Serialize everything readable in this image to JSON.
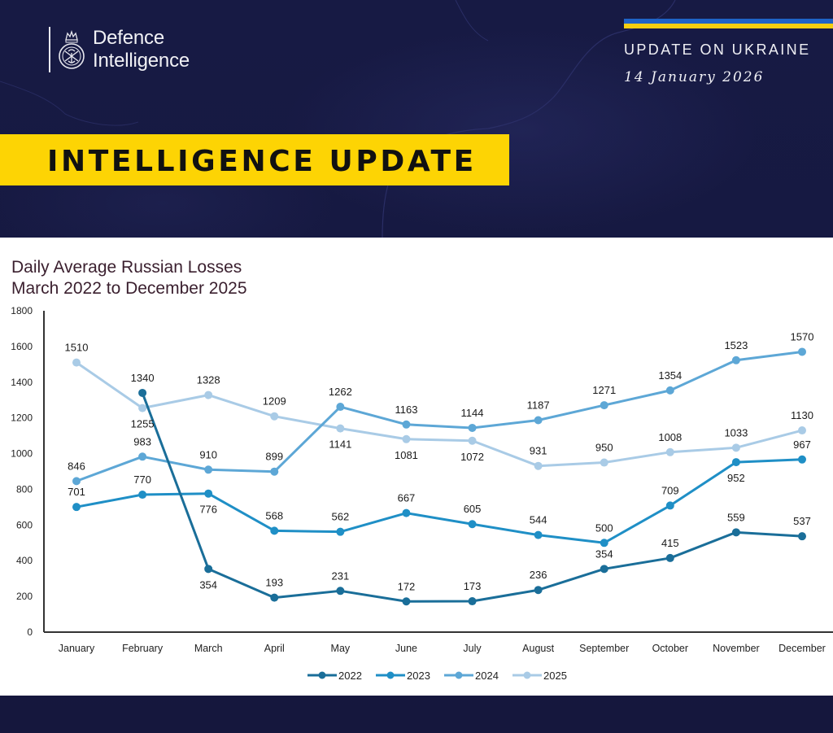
{
  "header": {
    "org_line1": "Defence",
    "org_line2": "Intelligence",
    "update_title": "UPDATE ON UKRAINE",
    "update_date": "14 January 2026",
    "banner": "INTELLIGENCE UPDATE",
    "flag_colors": [
      "#1f63c6",
      "#f5cf10"
    ],
    "logo_icon": "royal-crest-icon"
  },
  "colors": {
    "background": "#16183f",
    "banner": "#fdd404",
    "panel": "#ffffff"
  },
  "chart_data": {
    "type": "line",
    "title": "Daily Average Russian Losses",
    "subtitle": "March 2022 to December 2025",
    "xlabel": "",
    "ylabel": "",
    "ylim": [
      0,
      1800
    ],
    "yticks": [
      0,
      200,
      400,
      600,
      800,
      1000,
      1200,
      1400,
      1600,
      1800
    ],
    "grid": false,
    "legend_position": "bottom-center",
    "categories": [
      "January",
      "February",
      "March",
      "April",
      "May",
      "June",
      "July",
      "August",
      "September",
      "October",
      "November",
      "December"
    ],
    "series": [
      {
        "name": "2022",
        "color": "#1a6e99",
        "values": [
          null,
          1340,
          354,
          193,
          231,
          172,
          173,
          236,
          354,
          415,
          559,
          537
        ]
      },
      {
        "name": "2023",
        "color": "#1f8fc6",
        "values": [
          701,
          770,
          776,
          568,
          562,
          667,
          605,
          544,
          500,
          709,
          952,
          967
        ]
      },
      {
        "name": "2024",
        "color": "#5da7d6",
        "values": [
          846,
          983,
          910,
          899,
          1262,
          1163,
          1144,
          1187,
          1271,
          1354,
          1523,
          1570
        ]
      },
      {
        "name": "2025",
        "color": "#a9cbe6",
        "values": [
          1510,
          1255,
          1328,
          1209,
          1141,
          1081,
          1072,
          931,
          950,
          1008,
          1033,
          1130
        ]
      }
    ]
  }
}
